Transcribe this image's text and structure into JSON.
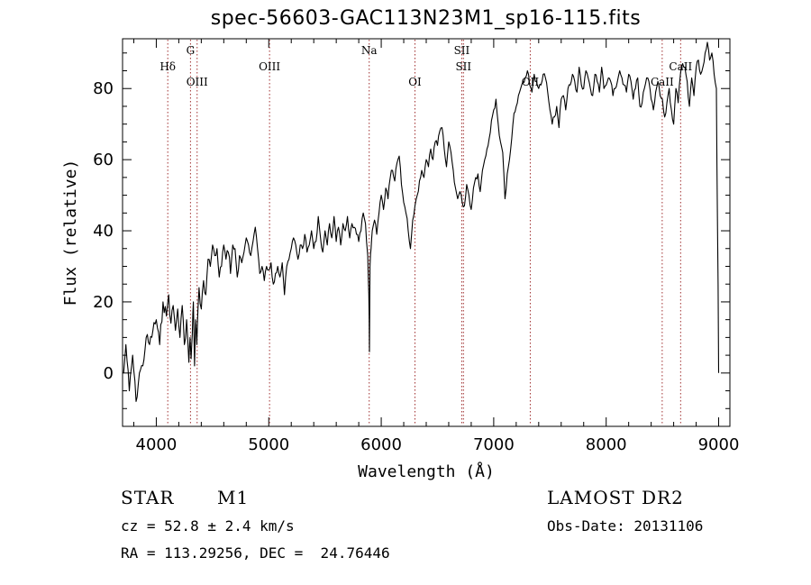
{
  "title": "spec-56603-GAC113N23M1_sp16-115.fits",
  "chart_data": {
    "type": "line",
    "title": "spec-56603-GAC113N23M1_sp16-115.fits",
    "xlabel": "Wavelength (Å)",
    "ylabel": "Flux (relative)",
    "xlim": [
      3700,
      9100
    ],
    "ylim": [
      -15,
      94
    ],
    "xticks": [
      4000,
      5000,
      6000,
      7000,
      8000,
      9000
    ],
    "yticks": [
      0,
      20,
      40,
      60,
      80
    ],
    "grid": false,
    "series": [
      {
        "name": "spectrum",
        "x": [
          3710,
          3730,
          3760,
          3790,
          3820,
          3850,
          3880,
          3910,
          3940,
          3970,
          4000,
          4030,
          4060,
          4090,
          4110,
          4130,
          4150,
          4170,
          4190,
          4210,
          4230,
          4250,
          4270,
          4290,
          4300,
          4310,
          4320,
          4330,
          4340,
          4350,
          4360,
          4380,
          4400,
          4420,
          4440,
          4460,
          4480,
          4500,
          4520,
          4540,
          4560,
          4580,
          4600,
          4620,
          4640,
          4660,
          4680,
          4700,
          4720,
          4740,
          4760,
          4780,
          4800,
          4820,
          4840,
          4860,
          4880,
          4900,
          4920,
          4940,
          4960,
          4980,
          5000,
          5020,
          5040,
          5060,
          5080,
          5100,
          5120,
          5140,
          5160,
          5180,
          5200,
          5220,
          5240,
          5260,
          5280,
          5300,
          5320,
          5340,
          5360,
          5380,
          5400,
          5420,
          5440,
          5460,
          5480,
          5500,
          5520,
          5540,
          5560,
          5580,
          5600,
          5620,
          5640,
          5660,
          5680,
          5700,
          5720,
          5740,
          5760,
          5780,
          5800,
          5820,
          5840,
          5860,
          5880,
          5890,
          5895,
          5900,
          5910,
          5920,
          5940,
          5960,
          5980,
          6000,
          6020,
          6040,
          6060,
          6080,
          6100,
          6120,
          6140,
          6160,
          6180,
          6200,
          6220,
          6240,
          6260,
          6280,
          6300,
          6320,
          6340,
          6360,
          6380,
          6400,
          6420,
          6440,
          6460,
          6480,
          6500,
          6520,
          6540,
          6560,
          6580,
          6600,
          6620,
          6640,
          6660,
          6680,
          6700,
          6720,
          6740,
          6760,
          6780,
          6800,
          6820,
          6840,
          6860,
          6880,
          6900,
          6920,
          6940,
          6960,
          6980,
          7000,
          7020,
          7040,
          7060,
          7080,
          7100,
          7120,
          7140,
          7160,
          7180,
          7200,
          7220,
          7240,
          7260,
          7280,
          7300,
          7320,
          7340,
          7360,
          7380,
          7400,
          7420,
          7440,
          7460,
          7480,
          7500,
          7520,
          7540,
          7560,
          7580,
          7600,
          7620,
          7640,
          7660,
          7680,
          7700,
          7720,
          7740,
          7760,
          7780,
          7800,
          7820,
          7840,
          7860,
          7880,
          7900,
          7920,
          7940,
          7960,
          7980,
          8000,
          8020,
          8040,
          8060,
          8080,
          8100,
          8120,
          8140,
          8160,
          8180,
          8200,
          8220,
          8240,
          8260,
          8280,
          8300,
          8320,
          8340,
          8360,
          8380,
          8400,
          8420,
          8440,
          8460,
          8480,
          8500,
          8520,
          8540,
          8560,
          8580,
          8600,
          8620,
          8640,
          8660,
          8680,
          8700,
          8720,
          8740,
          8760,
          8780,
          8800,
          8820,
          8840,
          8860,
          8880,
          8900,
          8920,
          8940,
          8960,
          8980,
          8990,
          8995,
          9000
        ],
        "y": [
          0,
          8,
          -5,
          5,
          -8,
          0,
          2,
          10,
          8,
          12,
          15,
          8,
          20,
          16,
          22,
          14,
          19,
          12,
          18,
          10,
          19,
          8,
          15,
          3,
          10,
          4,
          11,
          20,
          2,
          15,
          8,
          24,
          18,
          26,
          22,
          32,
          30,
          36,
          33,
          35,
          27,
          30,
          36,
          32,
          34,
          28,
          36,
          35,
          27,
          33,
          31,
          34,
          38,
          36,
          33,
          37,
          41,
          35,
          28,
          30,
          26,
          30,
          29,
          31,
          25,
          28,
          30,
          27,
          31,
          22,
          30,
          32,
          35,
          38,
          36,
          32,
          36,
          35,
          39,
          34,
          36,
          40,
          35,
          37,
          44,
          38,
          34,
          40,
          36,
          42,
          38,
          44,
          37,
          41,
          36,
          42,
          40,
          44,
          38,
          42,
          41,
          39,
          37,
          40,
          45,
          42,
          33,
          22,
          6,
          30,
          35,
          40,
          43,
          39,
          45,
          50,
          46,
          52,
          49,
          55,
          57,
          54,
          59,
          61,
          53,
          48,
          45,
          40,
          35,
          43,
          47,
          50,
          54,
          57,
          55,
          60,
          58,
          63,
          60,
          65,
          64,
          68,
          69,
          63,
          58,
          65,
          62,
          57,
          52,
          49,
          51,
          48,
          47,
          53,
          50,
          46,
          52,
          55,
          56,
          51,
          57,
          60,
          63,
          66,
          71,
          74,
          77,
          70,
          65,
          62,
          49,
          56,
          60,
          66,
          73,
          75,
          78,
          80,
          82,
          83,
          85,
          81,
          79,
          84,
          82,
          80,
          81,
          84,
          83,
          79,
          74,
          70,
          72,
          75,
          69,
          77,
          78,
          74,
          80,
          81,
          84,
          82,
          79,
          86,
          81,
          80,
          85,
          83,
          80,
          78,
          84,
          82,
          79,
          86,
          80,
          81,
          83,
          82,
          78,
          80,
          82,
          85,
          83,
          81,
          79,
          84,
          82,
          77,
          80,
          83,
          75,
          76,
          80,
          83,
          82,
          77,
          74,
          79,
          82,
          78,
          77,
          72,
          76,
          80,
          74,
          70,
          80,
          76,
          84,
          87,
          86,
          82,
          75,
          83,
          78,
          86,
          88,
          84,
          86,
          90,
          93,
          88,
          90,
          84,
          80,
          40,
          25,
          0
        ]
      }
    ],
    "lines": [
      {
        "label": "Hδ",
        "x": 4102,
        "row": 1
      },
      {
        "label": "G",
        "x": 4304,
        "row": 0
      },
      {
        "label": "OIII",
        "x": 4363,
        "row": 2
      },
      {
        "label": "OIII",
        "x": 5007,
        "row": 1
      },
      {
        "label": "Na",
        "x": 5893,
        "row": 0
      },
      {
        "label": "OI",
        "x": 6300,
        "row": 2
      },
      {
        "label": "SII",
        "x": 6716,
        "row": 0
      },
      {
        "label": "SII",
        "x": 6731,
        "row": 1
      },
      {
        "label": "OII",
        "x": 7325,
        "row": 2
      },
      {
        "label": "CaII",
        "x": 8498,
        "row": 2
      },
      {
        "label": "CaII",
        "x": 8662,
        "row": 1
      }
    ]
  },
  "info": {
    "object_class": "STAR",
    "subclass": "M1",
    "survey": "LAMOST DR2",
    "velocity": "cz = 52.8 ± 2.4 km/s",
    "obs_date": "Obs-Date: 20131106",
    "coords": "RA = 113.29256, DEC =  24.76446"
  }
}
